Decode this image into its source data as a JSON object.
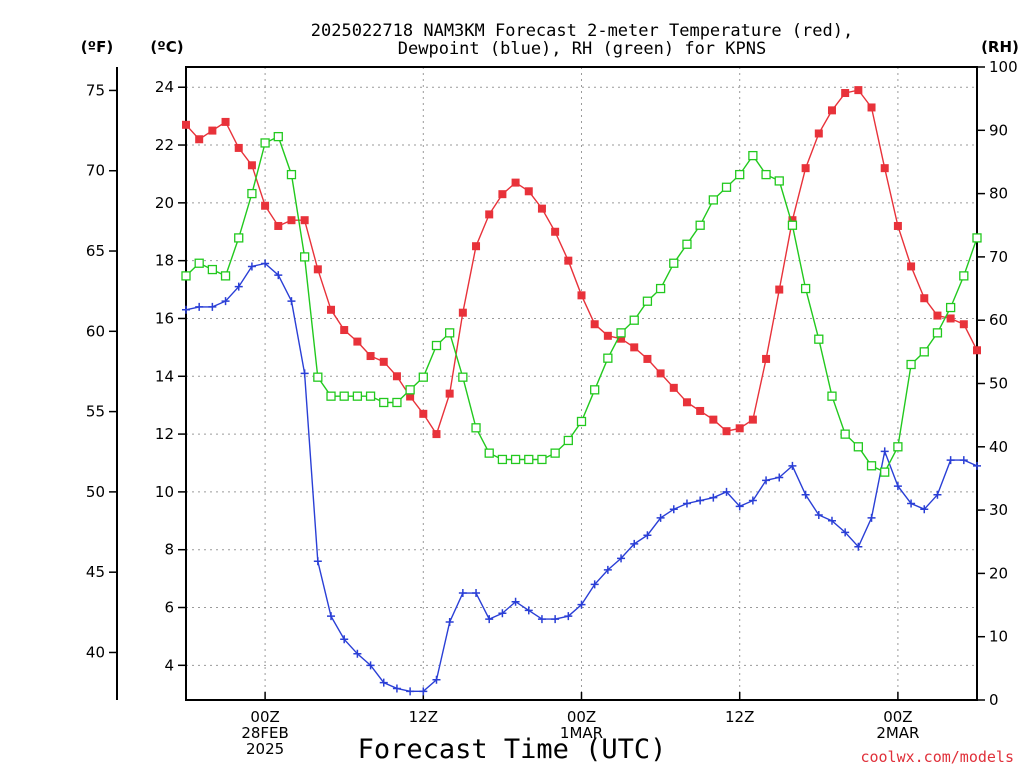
{
  "chart_data": {
    "type": "line",
    "title_lines": [
      "2025022718 NAM3KM Forecast 2-meter Temperature (red),",
      "Dewpoint (blue), RH (green) for KPNS"
    ],
    "xlabel": "Forecast Time (UTC)",
    "credit": "coolwx.com/models",
    "units": {
      "fahrenheit": "(ºF)",
      "celsius": "(ºC)",
      "rh": "(RH)"
    },
    "x_unit": "forecast hour",
    "xlim": [
      0,
      60
    ],
    "x_ticks": [
      {
        "hour": 6,
        "lines": [
          "00Z",
          "28FEB",
          "2025"
        ]
      },
      {
        "hour": 18,
        "lines": [
          "12Z"
        ]
      },
      {
        "hour": 30,
        "lines": [
          "00Z",
          "1MAR"
        ]
      },
      {
        "hour": 42,
        "lines": [
          "12Z"
        ]
      },
      {
        "hour": 54,
        "lines": [
          "00Z",
          "2MAR"
        ]
      }
    ],
    "celsius_axis": {
      "range": [
        2.8,
        24.7
      ],
      "ticks": [
        4,
        6,
        8,
        10,
        12,
        14,
        16,
        18,
        20,
        22,
        24
      ]
    },
    "fahrenheit_ticks": [
      40,
      45,
      50,
      55,
      60,
      65,
      70,
      75
    ],
    "rh_axis": {
      "range": [
        0,
        100
      ],
      "ticks": [
        0,
        10,
        20,
        30,
        40,
        50,
        60,
        70,
        80,
        90,
        100
      ]
    },
    "grid": true,
    "series": [
      {
        "name": "Temperature",
        "color": "#e8323a",
        "marker": "filled-square",
        "axis": "celsius",
        "hours": [
          0,
          1,
          2,
          3,
          4,
          5,
          6,
          7,
          8,
          9,
          10,
          11,
          12,
          13,
          14,
          15,
          16,
          17,
          18,
          19,
          20,
          21,
          22,
          23,
          24,
          25,
          26,
          27,
          28,
          29,
          30,
          31,
          32,
          33,
          34,
          35,
          36,
          37,
          38,
          39,
          40,
          41,
          42,
          43,
          44,
          45,
          46,
          47,
          48,
          49,
          50,
          51,
          52,
          53,
          54,
          55,
          56,
          57,
          58,
          59,
          60
        ],
        "values": [
          22.7,
          22.2,
          22.5,
          22.8,
          21.9,
          21.3,
          19.9,
          19.2,
          19.4,
          19.4,
          17.7,
          16.3,
          15.6,
          15.2,
          14.7,
          14.5,
          14.0,
          13.3,
          12.7,
          12.0,
          13.4,
          16.2,
          18.5,
          19.6,
          20.3,
          20.7,
          20.4,
          19.8,
          19.0,
          18.0,
          16.8,
          15.8,
          15.4,
          15.3,
          15.0,
          14.6,
          14.1,
          13.6,
          13.1,
          12.8,
          12.5,
          12.1,
          12.2,
          12.5,
          14.6,
          17.0,
          19.4,
          21.2,
          22.4,
          23.2,
          23.8,
          23.9,
          23.3,
          21.2,
          19.2,
          17.8,
          16.7,
          16.1,
          16.0,
          15.8,
          14.9
        ]
      },
      {
        "name": "Dewpoint",
        "color": "#2a3fd6",
        "marker": "plus",
        "axis": "celsius",
        "hours": [
          0,
          1,
          2,
          3,
          4,
          5,
          6,
          7,
          8,
          9,
          10,
          11,
          12,
          13,
          14,
          15,
          16,
          17,
          18,
          19,
          20,
          21,
          22,
          23,
          24,
          25,
          26,
          27,
          28,
          29,
          30,
          31,
          32,
          33,
          34,
          35,
          36,
          37,
          38,
          39,
          40,
          41,
          42,
          43,
          44,
          45,
          46,
          47,
          48,
          49,
          50,
          51,
          52,
          53,
          54,
          55,
          56,
          57,
          58,
          59,
          60
        ],
        "values": [
          16.3,
          16.4,
          16.4,
          16.6,
          17.1,
          17.8,
          17.9,
          17.5,
          16.6,
          14.1,
          7.6,
          5.7,
          4.9,
          4.4,
          4.0,
          3.4,
          3.2,
          3.1,
          3.1,
          3.5,
          5.5,
          6.5,
          6.5,
          5.6,
          5.8,
          6.2,
          5.9,
          5.6,
          5.6,
          5.7,
          6.1,
          6.8,
          7.3,
          7.7,
          8.2,
          8.5,
          9.1,
          9.4,
          9.6,
          9.7,
          9.8,
          10.0,
          9.5,
          9.7,
          10.4,
          10.5,
          10.9,
          9.9,
          9.2,
          9.0,
          8.6,
          8.1,
          9.1,
          11.4,
          10.2,
          9.6,
          9.4,
          9.9,
          11.1,
          11.1,
          10.9
        ]
      },
      {
        "name": "RH",
        "color": "#22c91e",
        "marker": "open-square",
        "axis": "rh",
        "hours": [
          0,
          1,
          2,
          3,
          4,
          5,
          6,
          7,
          8,
          9,
          10,
          11,
          12,
          13,
          14,
          15,
          16,
          17,
          18,
          19,
          20,
          21,
          22,
          23,
          24,
          25,
          26,
          27,
          28,
          29,
          30,
          31,
          32,
          33,
          34,
          35,
          36,
          37,
          38,
          39,
          40,
          41,
          42,
          43,
          44,
          45,
          46,
          47,
          48,
          49,
          50,
          51,
          52,
          53,
          54,
          55,
          56,
          57,
          58,
          59,
          60
        ],
        "values": [
          67,
          69,
          68,
          67,
          73,
          80,
          88,
          89,
          83,
          70,
          51,
          48,
          48,
          48,
          48,
          47,
          47,
          49,
          51,
          56,
          58,
          51,
          43,
          39,
          38,
          38,
          38,
          38,
          39,
          41,
          44,
          49,
          54,
          58,
          60,
          63,
          65,
          69,
          72,
          75,
          79,
          81,
          83,
          86,
          83,
          82,
          75,
          65,
          57,
          48,
          42,
          40,
          37,
          36,
          40,
          53,
          55,
          58,
          62,
          67,
          73
        ]
      }
    ]
  }
}
